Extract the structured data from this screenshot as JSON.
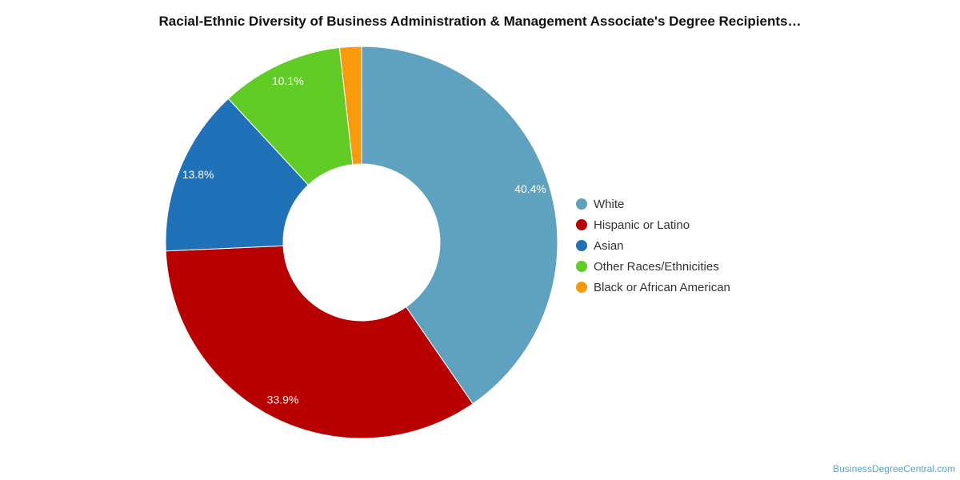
{
  "chart_data": {
    "type": "pie",
    "title": "Racial-Ethnic Diversity of Business Administration & Management Associate's Degree Recipients…",
    "categories": [
      "White",
      "Hispanic or Latino",
      "Asian",
      "Other Races/Ethnicities",
      "Black or African American"
    ],
    "values": [
      40.4,
      33.9,
      13.8,
      10.1,
      1.8
    ],
    "value_labels": [
      "40.4%",
      "33.9%",
      "13.8%",
      "10.1%",
      ""
    ],
    "colors": [
      "#5fa2bf",
      "#b90000",
      "#1f72b8",
      "#62cc26",
      "#f99a0d"
    ],
    "donut": true,
    "legend_position": "right"
  },
  "footer": {
    "source": "BusinessDegreeCentral.com"
  }
}
